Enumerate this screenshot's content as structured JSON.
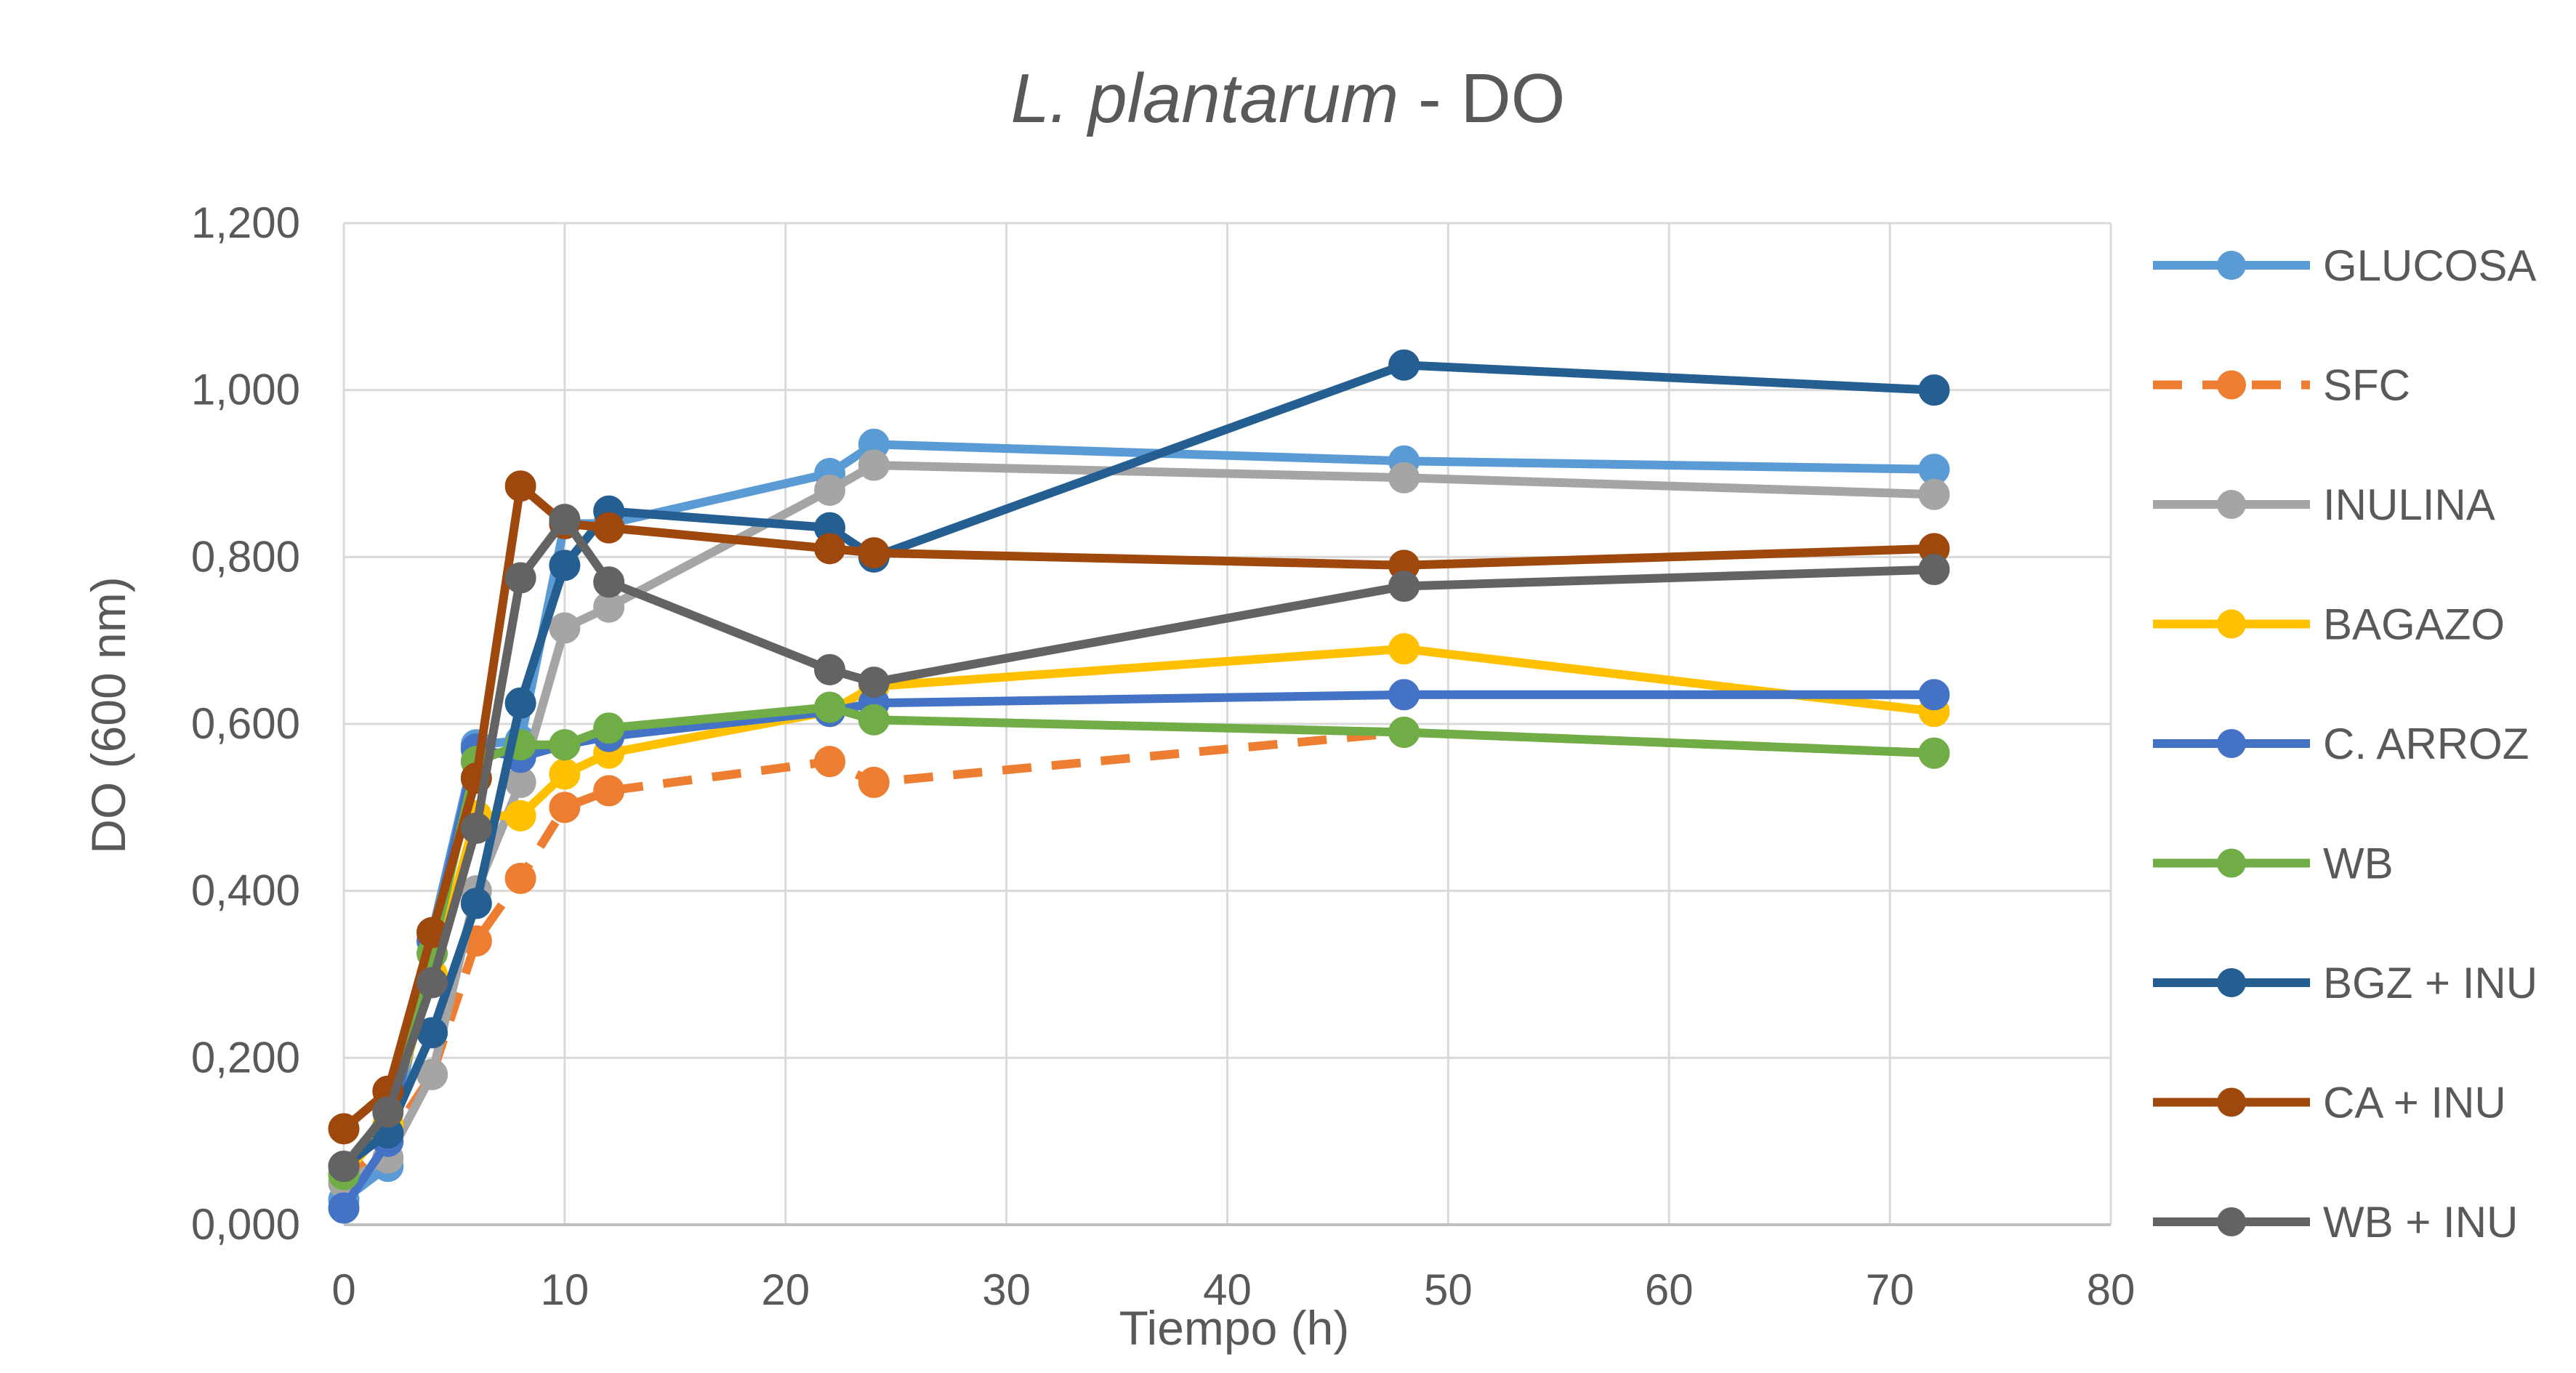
{
  "chart_data": {
    "type": "line",
    "title_italic": "L. plantarum",
    "title_rest": " - DO",
    "xlabel": "Tiempo (h)",
    "ylabel": "DO (600 nm)",
    "xlim": [
      0,
      80
    ],
    "ylim": [
      0,
      1.2
    ],
    "x_ticks": [
      "0",
      "10",
      "20",
      "30",
      "40",
      "50",
      "60",
      "70",
      "80"
    ],
    "y_ticks": [
      "0,000",
      "0,200",
      "0,400",
      "0,600",
      "0,800",
      "1,000",
      "1,200"
    ],
    "grid": true,
    "legend_position": "right",
    "series": [
      {
        "name": "GLUCOSA",
        "color": "#5B9BD5",
        "dash": false,
        "x": [
          0,
          2,
          4,
          6,
          8,
          10,
          12,
          22,
          24,
          48,
          72
        ],
        "y": [
          0.03,
          0.07,
          0.35,
          0.575,
          0.58,
          0.84,
          0.84,
          0.9,
          0.935,
          0.915,
          0.905
        ]
      },
      {
        "name": "SFC",
        "color": "#ED7D31",
        "dash": true,
        "x": [
          0,
          2,
          4,
          6,
          8,
          10,
          12,
          22,
          24,
          48,
          72
        ],
        "y": [
          0.05,
          0.1,
          0.18,
          0.34,
          0.415,
          0.5,
          0.52,
          0.555,
          0.53,
          0.59,
          0.565
        ]
      },
      {
        "name": "INULINA",
        "color": "#A5A5A5",
        "dash": false,
        "x": [
          0,
          2,
          4,
          6,
          8,
          10,
          12,
          22,
          24,
          48,
          72
        ],
        "y": [
          0.05,
          0.08,
          0.18,
          0.4,
          0.53,
          0.715,
          0.74,
          0.88,
          0.91,
          0.895,
          0.875
        ]
      },
      {
        "name": "BAGAZO",
        "color": "#FFC000",
        "dash": false,
        "x": [
          0,
          2,
          4,
          6,
          8,
          10,
          12,
          22,
          24,
          48,
          72
        ],
        "y": [
          0.06,
          0.12,
          0.3,
          0.49,
          0.49,
          0.54,
          0.565,
          0.615,
          0.645,
          0.69,
          0.615
        ]
      },
      {
        "name": "C. ARROZ",
        "color": "#4472C4",
        "dash": false,
        "x": [
          0,
          2,
          4,
          6,
          8,
          10,
          12,
          22,
          24,
          48,
          72
        ],
        "y": [
          0.02,
          0.1,
          0.34,
          0.57,
          0.56,
          0.575,
          0.585,
          0.615,
          0.625,
          0.635,
          0.635
        ]
      },
      {
        "name": "WB",
        "color": "#70AD47",
        "dash": false,
        "x": [
          0,
          2,
          4,
          6,
          8,
          10,
          12,
          22,
          24,
          48,
          72
        ],
        "y": [
          0.06,
          0.14,
          0.325,
          0.555,
          0.575,
          0.575,
          0.595,
          0.62,
          0.605,
          0.59,
          0.565
        ]
      },
      {
        "name": "BGZ + INU",
        "color": "#255E91",
        "dash": false,
        "x": [
          0,
          2,
          4,
          6,
          8,
          10,
          12,
          22,
          24,
          48,
          72
        ],
        "y": [
          0.07,
          0.11,
          0.23,
          0.385,
          0.625,
          0.79,
          0.855,
          0.835,
          0.8,
          1.03,
          1.0
        ]
      },
      {
        "name": "CA + INU",
        "color": "#9E480E",
        "dash": false,
        "x": [
          0,
          2,
          4,
          6,
          8,
          10,
          12,
          22,
          24,
          48,
          72
        ],
        "y": [
          0.115,
          0.16,
          0.35,
          0.535,
          0.885,
          0.84,
          0.835,
          0.81,
          0.805,
          0.79,
          0.81
        ]
      },
      {
        "name": "WB + INU",
        "color": "#636363",
        "dash": false,
        "x": [
          0,
          2,
          4,
          6,
          8,
          10,
          12,
          22,
          24,
          48,
          72
        ],
        "y": [
          0.07,
          0.135,
          0.29,
          0.475,
          0.775,
          0.845,
          0.77,
          0.665,
          0.65,
          0.765,
          0.785
        ]
      }
    ]
  }
}
